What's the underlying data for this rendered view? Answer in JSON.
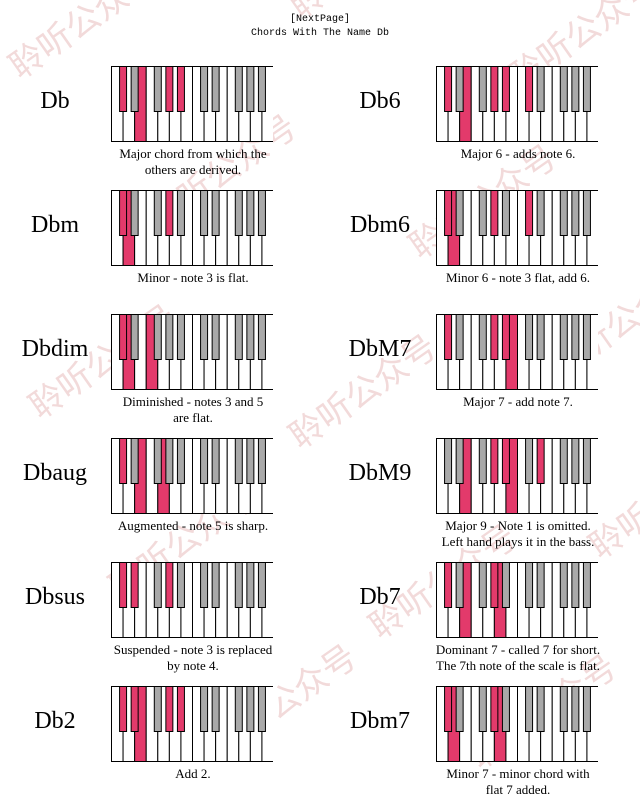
{
  "header": {
    "next_link": "[NextPage]",
    "title": "Chords With The Name Db"
  },
  "colors": {
    "highlight": "#e33a6b",
    "black_key": "#a9a9a9",
    "white_key": "#ffffff",
    "outline": "#000000",
    "watermark": "#f2dada"
  },
  "watermark": {
    "text": "聆听公众号"
  },
  "chords": [
    {
      "name": "Db",
      "caption": "Major chord from which the\nothers are derived.",
      "white": [
        2
      ],
      "black": [
        0,
        3,
        4
      ]
    },
    {
      "name": "Db6",
      "caption": "Major 6 - adds note 6.",
      "white": [
        2
      ],
      "black": [
        0,
        3,
        4,
        5
      ]
    },
    {
      "name": "Dbm",
      "caption": "Minor - note 3 is flat.",
      "white": [
        1
      ],
      "black": [
        0,
        3
      ]
    },
    {
      "name": "Dbm6",
      "caption": "Minor 6 - note 3 flat, add 6.",
      "white": [
        1
      ],
      "black": [
        0,
        3,
        5
      ]
    },
    {
      "name": "Dbdim",
      "caption": "Diminished - notes 3 and 5\nare flat.",
      "white": [
        1,
        3
      ],
      "black": [
        0
      ]
    },
    {
      "name": "DbM7",
      "caption": "Major 7 - add note 7.",
      "white": [
        6
      ],
      "black": [
        0,
        3,
        4
      ]
    },
    {
      "name": "Dbaug",
      "caption": "Augmented - note 5 is sharp.",
      "white": [
        2,
        4
      ],
      "black": [
        0
      ]
    },
    {
      "name": "DbM9",
      "caption": "Major 9 - Note 1 is omitted.\nLeft hand plays it in the bass.",
      "white": [
        2,
        6
      ],
      "black": [
        3,
        4,
        6
      ]
    },
    {
      "name": "Dbsus",
      "caption": "Suspended - note 3 is replaced\nby note 4.",
      "white": [],
      "black": [
        0,
        1,
        3
      ]
    },
    {
      "name": "Db7",
      "caption": "Dominant 7 - called 7 for short.\nThe 7th note of the scale is flat.",
      "white": [
        2,
        5
      ],
      "black": [
        0,
        3
      ]
    },
    {
      "name": "Db2",
      "caption": "Add 2.",
      "white": [
        2
      ],
      "black": [
        0,
        1,
        3,
        4
      ]
    },
    {
      "name": "Dbm7",
      "caption": "Minor 7 - minor chord with\nflat 7 added.",
      "white": [
        1,
        5
      ],
      "black": [
        0,
        3
      ]
    }
  ]
}
